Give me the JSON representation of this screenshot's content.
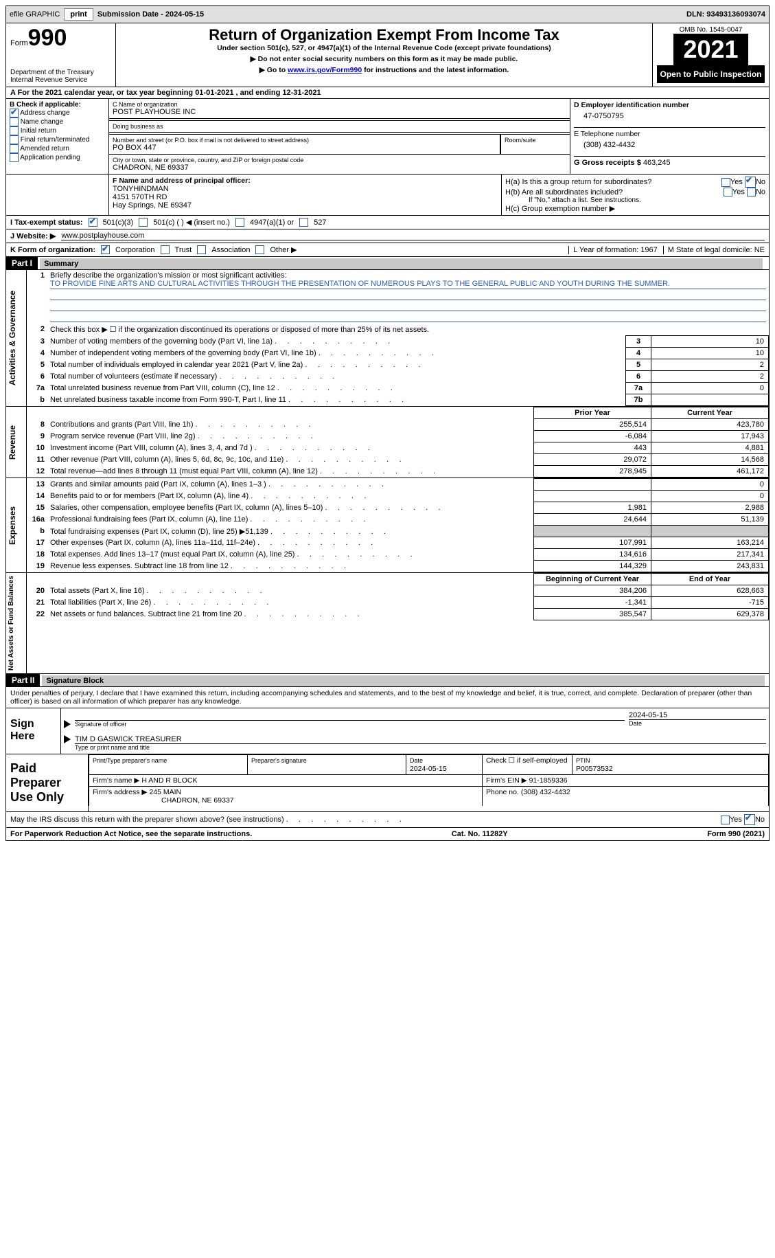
{
  "topbar": {
    "efile": "efile GRAPHIC",
    "print": "print",
    "subdate_label": "Submission Date - 2024-05-15",
    "dln": "DLN: 93493136093074"
  },
  "header": {
    "form_word": "Form",
    "form_num": "990",
    "dept": "Department of the Treasury",
    "irs": "Internal Revenue Service",
    "title": "Return of Organization Exempt From Income Tax",
    "sub1": "Under section 501(c), 527, or 4947(a)(1) of the Internal Revenue Code (except private foundations)",
    "sub2": "▶ Do not enter social security numbers on this form as it may be made public.",
    "sub3_pre": "▶ Go to ",
    "sub3_link": "www.irs.gov/Form990",
    "sub3_post": " for instructions and the latest information.",
    "omb": "OMB No. 1545-0047",
    "year": "2021",
    "open": "Open to Public Inspection"
  },
  "row_a": "A For the 2021 calendar year, or tax year beginning 01-01-2021    , and ending 12-31-2021",
  "b": {
    "label": "B Check if applicable:",
    "items": [
      {
        "label": "Address change",
        "checked": true
      },
      {
        "label": "Name change",
        "checked": false
      },
      {
        "label": "Initial return",
        "checked": false
      },
      {
        "label": "Final return/terminated",
        "checked": false
      },
      {
        "label": "Amended return",
        "checked": false
      },
      {
        "label": "Application pending",
        "checked": false
      }
    ]
  },
  "c": {
    "name_label": "C Name of organization",
    "name": "POST PLAYHOUSE INC",
    "dba_label": "Doing business as",
    "dba": "",
    "addr_label": "Number and street (or P.O. box if mail is not delivered to street address)",
    "addr": "PO BOX 447",
    "room_label": "Room/suite",
    "city_label": "City or town, state or province, country, and ZIP or foreign postal code",
    "city": "CHADRON, NE  69337"
  },
  "right": {
    "d_label": "D Employer identification number",
    "d_val": "47-0750795",
    "e_label": "E Telephone number",
    "e_val": "(308) 432-4432",
    "g_label": "G Gross receipts $",
    "g_val": "463,245"
  },
  "f": {
    "label": "F  Name and address of principal officer:",
    "name": "TONYHINDMAN",
    "addr1": "4151 570TH RD",
    "addr2": "Hay Springs, NE  69347"
  },
  "h": {
    "a": "H(a)  Is this a group return for subordinates?",
    "b": "H(b)  Are all subordinates included?",
    "b_note": "If \"No,\" attach a list. See instructions.",
    "c": "H(c)  Group exemption number ▶",
    "yes": "Yes",
    "no": "No"
  },
  "i": {
    "label": "I   Tax-exempt status:",
    "opts": [
      "501(c)(3)",
      "501(c) (  ) ◀ (insert no.)",
      "4947(a)(1) or",
      "527"
    ]
  },
  "j": {
    "label": "J   Website: ▶",
    "val": "www.postplayhouse.com"
  },
  "k": {
    "label": "K Form of organization:",
    "opts": [
      "Corporation",
      "Trust",
      "Association",
      "Other ▶"
    ],
    "l": "L Year of formation: 1967",
    "m": "M State of legal domicile: NE"
  },
  "part1": {
    "hdr": "Part I",
    "title": "Summary",
    "q1_label": "Briefly describe the organization's mission or most significant activities:",
    "q1_text": "TO PROVIDE FINE ARTS AND CULTURAL ACTIVITIES THROUGH THE PRESENTATION OF NUMEROUS PLAYS TO THE GENERAL PUBLIC AND YOUTH DURING THE SUMMER.",
    "q2": "Check this box ▶ ☐ if the organization discontinued its operations or disposed of more than 25% of its net assets.",
    "lines_gov": [
      {
        "n": "3",
        "t": "Number of voting members of the governing body (Part VI, line 1a)",
        "b": "3",
        "v": "10"
      },
      {
        "n": "4",
        "t": "Number of independent voting members of the governing body (Part VI, line 1b)",
        "b": "4",
        "v": "10"
      },
      {
        "n": "5",
        "t": "Total number of individuals employed in calendar year 2021 (Part V, line 2a)",
        "b": "5",
        "v": "2"
      },
      {
        "n": "6",
        "t": "Total number of volunteers (estimate if necessary)",
        "b": "6",
        "v": "2"
      },
      {
        "n": "7a",
        "t": "Total unrelated business revenue from Part VIII, column (C), line 12",
        "b": "7a",
        "v": "0"
      },
      {
        "n": "b",
        "t": "Net unrelated business taxable income from Form 990-T, Part I, line 11",
        "b": "7b",
        "v": ""
      }
    ],
    "col_prior": "Prior Year",
    "col_curr": "Current Year",
    "rev": [
      {
        "n": "8",
        "t": "Contributions and grants (Part VIII, line 1h)",
        "p": "255,514",
        "c": "423,780"
      },
      {
        "n": "9",
        "t": "Program service revenue (Part VIII, line 2g)",
        "p": "-6,084",
        "c": "17,943"
      },
      {
        "n": "10",
        "t": "Investment income (Part VIII, column (A), lines 3, 4, and 7d )",
        "p": "443",
        "c": "4,881"
      },
      {
        "n": "11",
        "t": "Other revenue (Part VIII, column (A), lines 5, 6d, 8c, 9c, 10c, and 11e)",
        "p": "29,072",
        "c": "14,568"
      },
      {
        "n": "12",
        "t": "Total revenue—add lines 8 through 11 (must equal Part VIII, column (A), line 12)",
        "p": "278,945",
        "c": "461,172"
      }
    ],
    "exp": [
      {
        "n": "13",
        "t": "Grants and similar amounts paid (Part IX, column (A), lines 1–3 )",
        "p": "",
        "c": "0"
      },
      {
        "n": "14",
        "t": "Benefits paid to or for members (Part IX, column (A), line 4)",
        "p": "",
        "c": "0"
      },
      {
        "n": "15",
        "t": "Salaries, other compensation, employee benefits (Part IX, column (A), lines 5–10)",
        "p": "1,981",
        "c": "2,988"
      },
      {
        "n": "16a",
        "t": "Professional fundraising fees (Part IX, column (A), line 11e)",
        "p": "24,644",
        "c": "51,139"
      },
      {
        "n": "b",
        "t": "Total fundraising expenses (Part IX, column (D), line 25) ▶51,139",
        "p": "GRAY",
        "c": "GRAY"
      },
      {
        "n": "17",
        "t": "Other expenses (Part IX, column (A), lines 11a–11d, 11f–24e)",
        "p": "107,991",
        "c": "163,214"
      },
      {
        "n": "18",
        "t": "Total expenses. Add lines 13–17 (must equal Part IX, column (A), line 25)",
        "p": "134,616",
        "c": "217,341"
      },
      {
        "n": "19",
        "t": "Revenue less expenses. Subtract line 18 from line 12",
        "p": "144,329",
        "c": "243,831"
      }
    ],
    "col_begin": "Beginning of Current Year",
    "col_end": "End of Year",
    "net": [
      {
        "n": "20",
        "t": "Total assets (Part X, line 16)",
        "p": "384,206",
        "c": "628,663"
      },
      {
        "n": "21",
        "t": "Total liabilities (Part X, line 26)",
        "p": "-1,341",
        "c": "-715"
      },
      {
        "n": "22",
        "t": "Net assets or fund balances. Subtract line 21 from line 20",
        "p": "385,547",
        "c": "629,378"
      }
    ],
    "vlab_gov": "Activities & Governance",
    "vlab_rev": "Revenue",
    "vlab_exp": "Expenses",
    "vlab_net": "Net Assets or Fund Balances"
  },
  "part2": {
    "hdr": "Part II",
    "title": "Signature Block",
    "decl": "Under penalties of perjury, I declare that I have examined this return, including accompanying schedules and statements, and to the best of my knowledge and belief, it is true, correct, and complete. Declaration of preparer (other than officer) is based on all information of which preparer has any knowledge.",
    "sign_here": "Sign Here",
    "sig_officer": "Signature of officer",
    "sig_date": "2024-05-15",
    "date": "Date",
    "typed": "TIM D GASWICK  TREASURER",
    "typed_lab": "Type or print name and title",
    "paid": "Paid Preparer Use Only",
    "prep_name_lab": "Print/Type preparer's name",
    "prep_sig_lab": "Preparer's signature",
    "prep_date_lab": "Date",
    "prep_date": "2024-05-15",
    "prep_check": "Check ☐ if self-employed",
    "ptin_lab": "PTIN",
    "ptin": "P00573532",
    "firm_name_lab": "Firm's name     ▶",
    "firm_name": "H AND R BLOCK",
    "firm_ein_lab": "Firm's EIN ▶",
    "firm_ein": "91-1859336",
    "firm_addr_lab": "Firm's address ▶",
    "firm_addr": "245 MAIN",
    "firm_city": "CHADRON, NE  69337",
    "phone_lab": "Phone no.",
    "phone": "(308) 432-4432",
    "may": "May the IRS discuss this return with the preparer shown above? (see instructions)"
  },
  "footer": {
    "left": "For Paperwork Reduction Act Notice, see the separate instructions.",
    "mid": "Cat. No. 11282Y",
    "right": "Form 990 (2021)"
  }
}
